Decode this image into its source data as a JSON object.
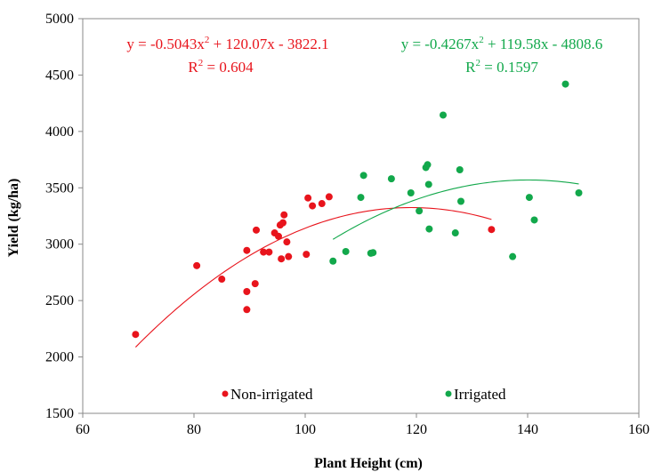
{
  "chart_data": {
    "type": "scatter",
    "xlabel": "Plant Height (cm)",
    "ylabel": "Yield (kg/ha)",
    "xlim": [
      60,
      160
    ],
    "ylim": [
      1500,
      5000
    ],
    "x_ticks": [
      "60",
      "80",
      "100",
      "120",
      "140",
      "160"
    ],
    "y_ticks": [
      "1500",
      "2000",
      "2500",
      "3000",
      "3500",
      "4000",
      "4500",
      "5000"
    ],
    "grid": false,
    "legend_position": "bottom-center",
    "series": [
      {
        "name": "Non-irrigated",
        "color": "#e8141c",
        "points": [
          [
            69.5,
            2200
          ],
          [
            80.5,
            2810
          ],
          [
            85,
            2690
          ],
          [
            89.5,
            2580
          ],
          [
            89.5,
            2420
          ],
          [
            89.5,
            2945
          ],
          [
            91,
            2650
          ],
          [
            91.2,
            3125
          ],
          [
            92.5,
            2930
          ],
          [
            93.5,
            2930
          ],
          [
            94.5,
            3100
          ],
          [
            95.2,
            3070
          ],
          [
            95.5,
            3170
          ],
          [
            95.7,
            2870
          ],
          [
            96,
            3190
          ],
          [
            96.2,
            3260
          ],
          [
            96.7,
            3020
          ],
          [
            97,
            2890
          ],
          [
            100.2,
            2910
          ],
          [
            100.5,
            3410
          ],
          [
            101.3,
            3340
          ],
          [
            103,
            3360
          ],
          [
            104.3,
            3420
          ],
          [
            133.5,
            3130
          ]
        ],
        "trend": {
          "type": "poly2",
          "a": -0.5043,
          "b": 120.07,
          "c": -3822.1,
          "x_range": [
            69.5,
            133.5
          ]
        },
        "equation": {
          "prefix": "y = -0.5043x",
          "sup": "2",
          "suffix": " + 120.07x - 3822.1"
        },
        "r2": {
          "prefix": "R",
          "sup": "2",
          "suffix": " = 0.604"
        }
      },
      {
        "name": "Irrigated",
        "color": "#12a84b",
        "points": [
          [
            105,
            2850
          ],
          [
            107.3,
            2935
          ],
          [
            110,
            3415
          ],
          [
            110.5,
            3610
          ],
          [
            111.8,
            2920
          ],
          [
            112.2,
            2925
          ],
          [
            115.5,
            3580
          ],
          [
            119,
            3455
          ],
          [
            120.5,
            3295
          ],
          [
            121.7,
            3680
          ],
          [
            122,
            3705
          ],
          [
            122.2,
            3530
          ],
          [
            122.3,
            3135
          ],
          [
            124.8,
            4145
          ],
          [
            127,
            3100
          ],
          [
            127.8,
            3660
          ],
          [
            128,
            3380
          ],
          [
            137.3,
            2890
          ],
          [
            140.3,
            3415
          ],
          [
            141.2,
            3215
          ],
          [
            146.8,
            4420
          ],
          [
            149.2,
            3455
          ]
        ],
        "trend": {
          "type": "poly2",
          "a": -0.4267,
          "b": 119.58,
          "c": -4808.6,
          "x_range": [
            105,
            149.2
          ]
        },
        "equation": {
          "prefix": "y = -0.4267x",
          "sup": "2",
          "suffix": " + 119.58x - 4808.6"
        },
        "r2": {
          "prefix": "R",
          "sup": "2",
          "suffix": " = 0.1597"
        }
      }
    ]
  }
}
